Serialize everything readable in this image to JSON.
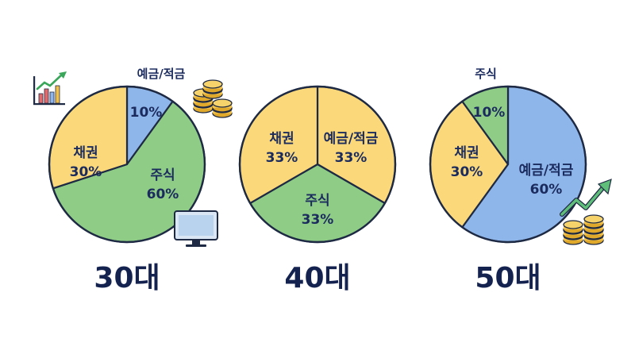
{
  "colors": {
    "savings": "#8fb6ea",
    "stocks": "#8fcc86",
    "bonds": "#fbd97a",
    "outline": "#1e2a44",
    "text": "#1b2b5e"
  },
  "chart_data": [
    {
      "type": "pie",
      "title": "30대",
      "slices": [
        {
          "label": "예금/적금",
          "value": 10,
          "value_text": "10%",
          "color_key": "savings"
        },
        {
          "label": "주식",
          "value": 60,
          "value_text": "60%",
          "color_key": "stocks"
        },
        {
          "label": "채권",
          "value": 30,
          "value_text": "30%",
          "color_key": "bonds"
        }
      ],
      "icons": [
        "growth-chart-icon",
        "coin-stack-icon",
        "computer-monitor-icon"
      ]
    },
    {
      "type": "pie",
      "title": "40대",
      "slices": [
        {
          "label": "예금/적금",
          "value": 33,
          "value_text": "33%",
          "color_key": "bonds"
        },
        {
          "label": "주식",
          "value": 33,
          "value_text": "33%",
          "color_key": "stocks"
        },
        {
          "label": "채권",
          "value": 33,
          "value_text": "33%",
          "color_key": "bonds"
        }
      ],
      "icons": []
    },
    {
      "type": "pie",
      "title": "50대",
      "slices": [
        {
          "label": "예금/적금",
          "value": 60,
          "value_text": "60%",
          "color_key": "savings"
        },
        {
          "label": "채권",
          "value": 30,
          "value_text": "30%",
          "color_key": "bonds"
        },
        {
          "label": "주식",
          "value": 10,
          "value_text": "10%",
          "color_key": "stocks"
        }
      ],
      "icons": [
        "trend-arrow-icon",
        "coin-stack-icon"
      ]
    }
  ]
}
